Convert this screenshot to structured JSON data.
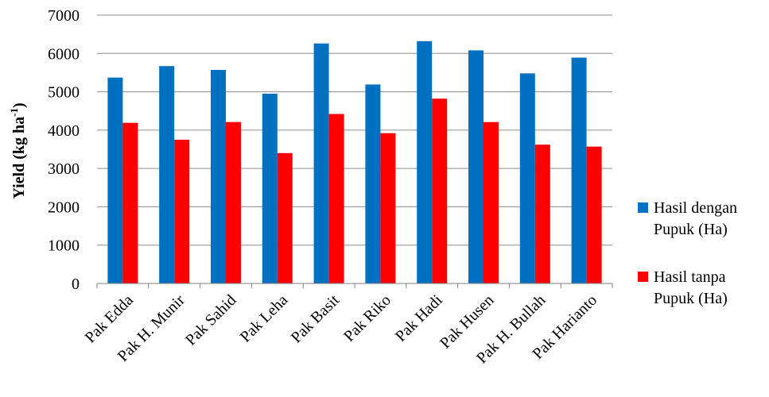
{
  "chart_data": {
    "type": "bar",
    "categories": [
      "Pak Edda",
      "Pak H. Munir",
      "Pak Sahid",
      "Pak Leha",
      "Pak Basit",
      "Pak Riko",
      "Pak Hadi",
      "Pak Husen",
      "Pak H. Bullah",
      "Pak Harianto"
    ],
    "series": [
      {
        "name": "Hasil dengan Pupuk (Ha)",
        "legend_lines": [
          "Hasil dengan",
          "Pupuk (Ha)"
        ],
        "color": "#0070C0",
        "values": [
          5370,
          5670,
          5570,
          4950,
          6260,
          5190,
          6320,
          6080,
          5480,
          5890
        ]
      },
      {
        "name": "Hasil tanpa Pupuk (Ha)",
        "legend_lines": [
          "Hasil tanpa",
          "Pupuk (Ha)"
        ],
        "color": "#FF0000",
        "values": [
          4190,
          3750,
          4210,
          3400,
          4420,
          3920,
          4820,
          4210,
          3620,
          3570
        ]
      }
    ],
    "ylabel_main": "Yield (kg ha",
    "ylabel_sup": "-1",
    "ylabel_tail": ")",
    "ylim": [
      0,
      7000
    ],
    "yticks": [
      0,
      1000,
      2000,
      3000,
      4000,
      5000,
      6000,
      7000
    ],
    "grid": true,
    "legend_position": "right"
  }
}
